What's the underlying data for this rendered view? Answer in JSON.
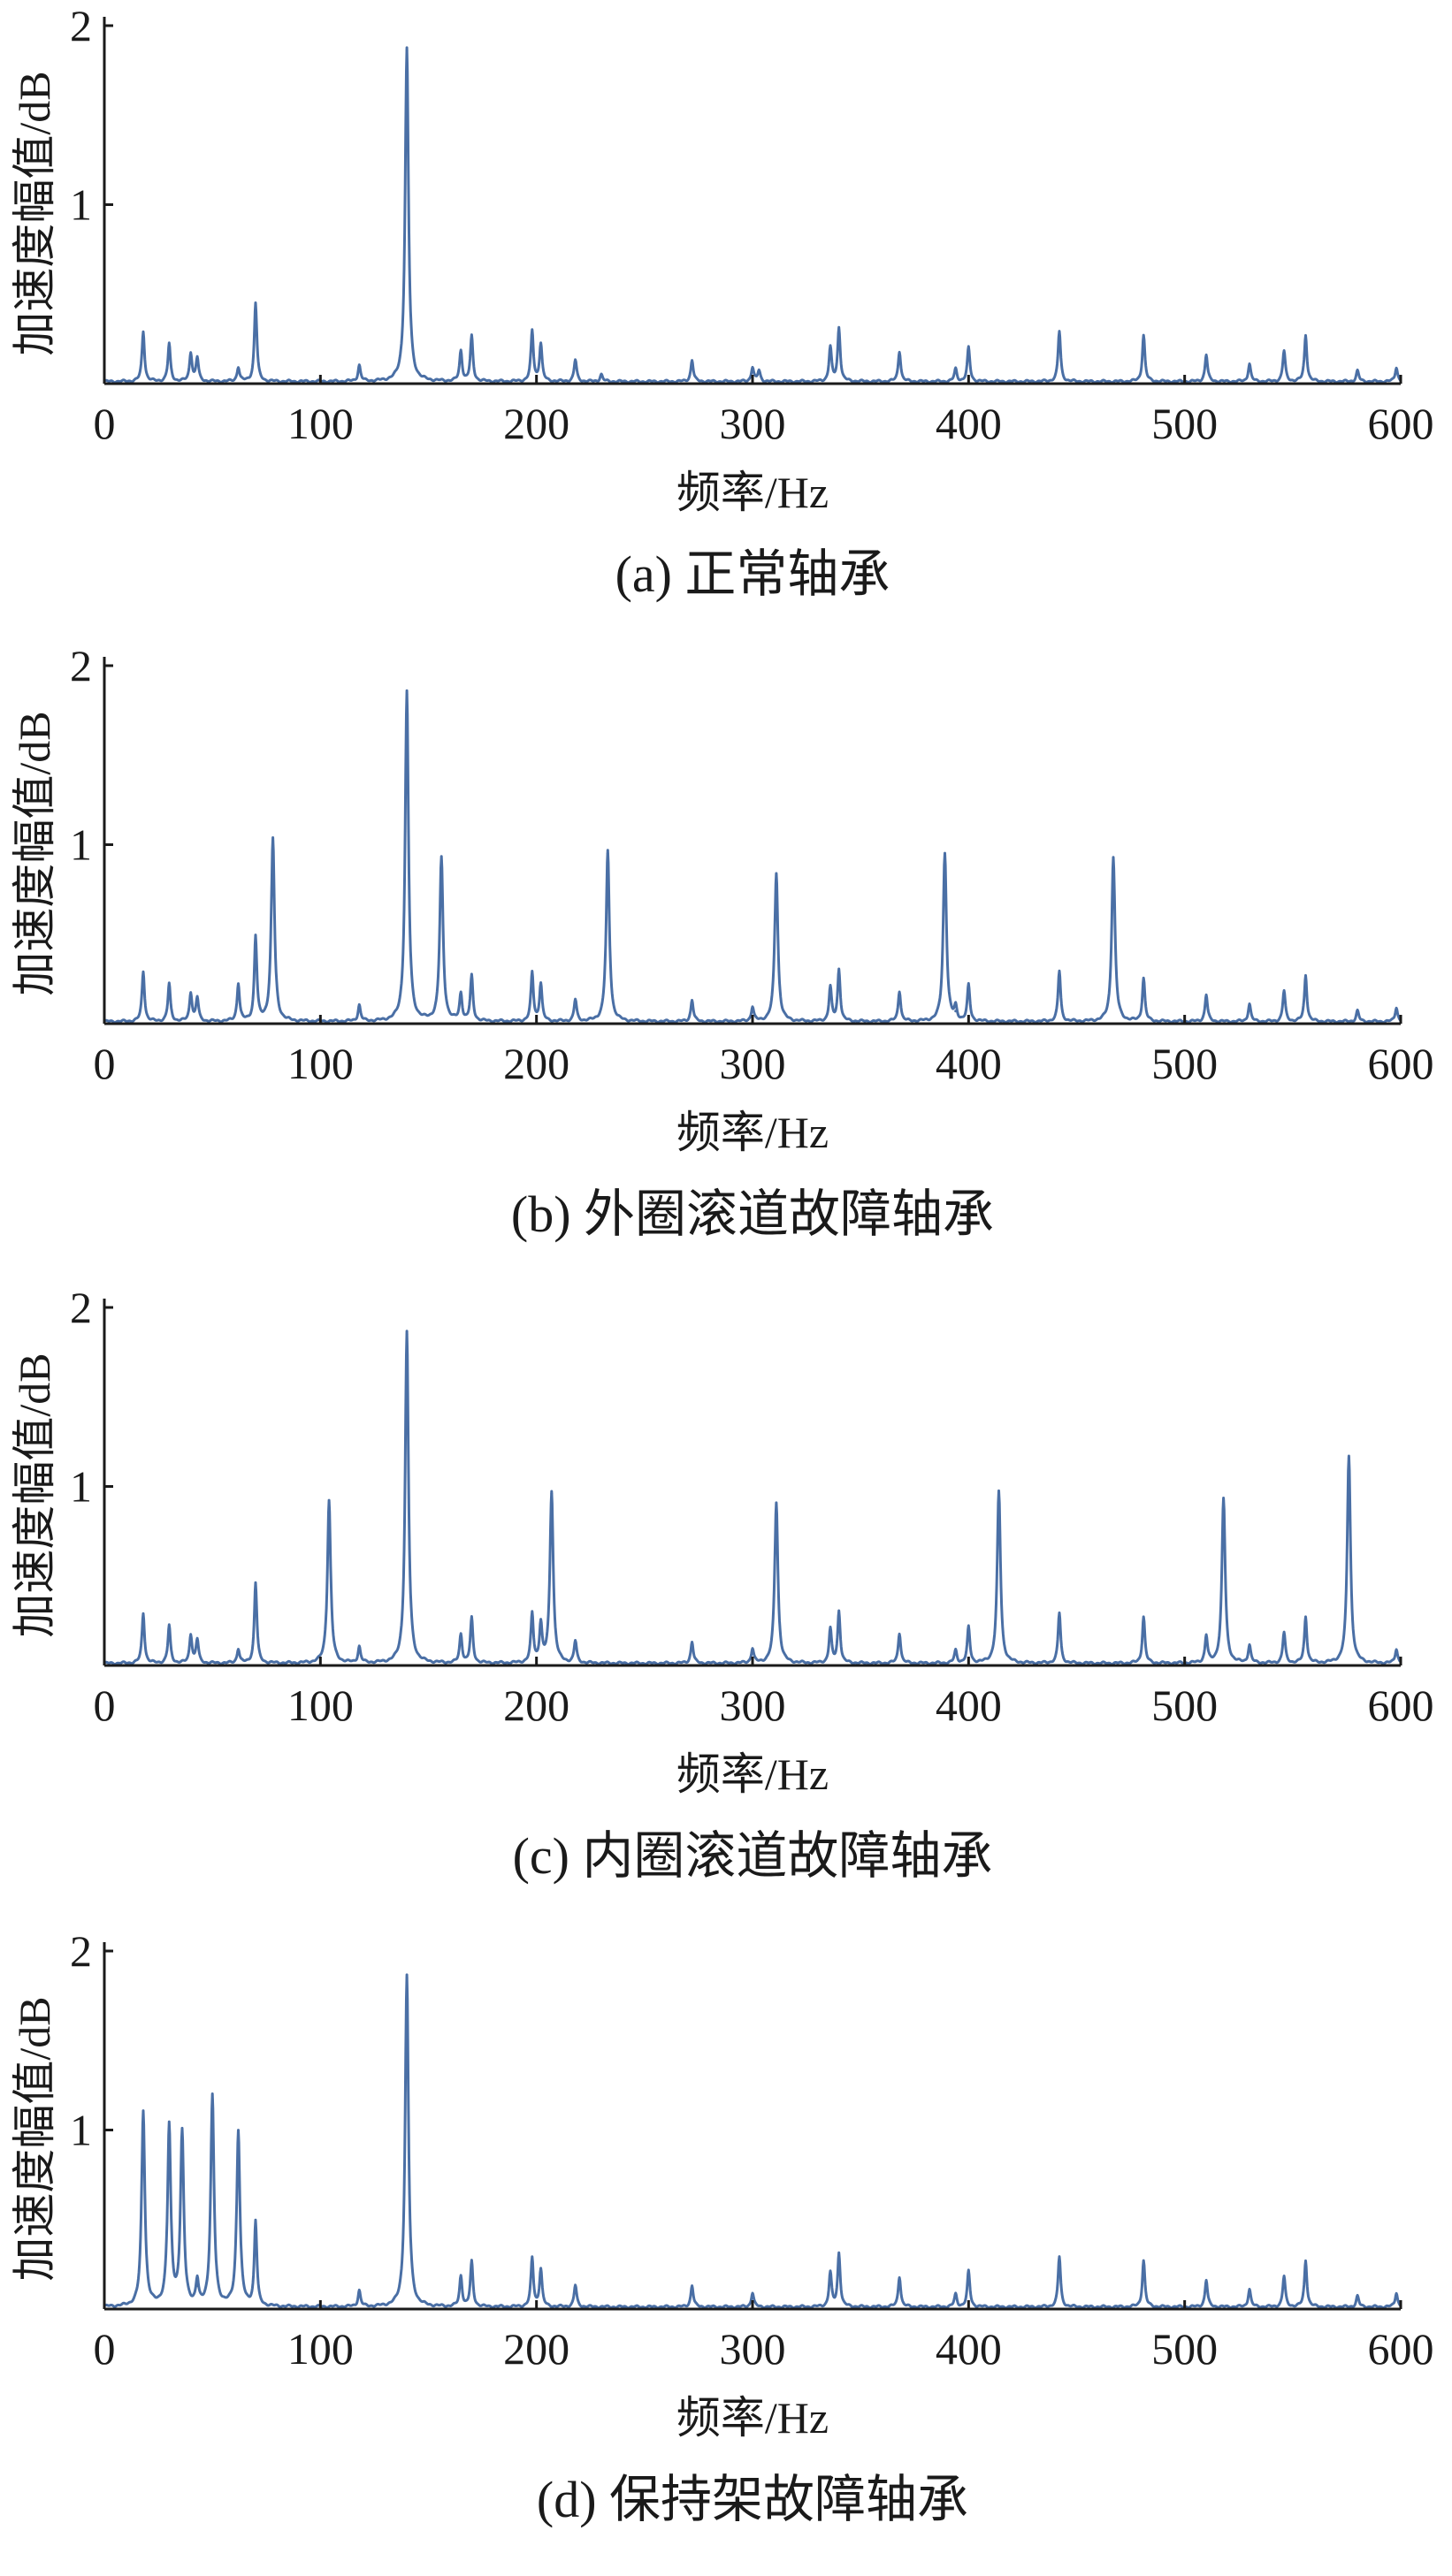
{
  "colors": {
    "series": "#4a6fa5",
    "axis": "#1a1a1a"
  },
  "chart_data": [
    {
      "type": "line",
      "caption": "(a) 正常轴承",
      "xlabel": "频率/Hz",
      "ylabel": "加速度幅值/dB",
      "xlim": [
        0,
        600
      ],
      "ylim": [
        0,
        2
      ],
      "xticks": [
        0,
        100,
        200,
        300,
        400,
        500,
        600
      ],
      "yticks": [
        1,
        2
      ],
      "grid": false,
      "peaks": [
        {
          "x": 18,
          "y": 0.28
        },
        {
          "x": 30,
          "y": 0.21
        },
        {
          "x": 40,
          "y": 0.16
        },
        {
          "x": 43,
          "y": 0.13
        },
        {
          "x": 62,
          "y": 0.08
        },
        {
          "x": 70,
          "y": 0.44
        },
        {
          "x": 118,
          "y": 0.09
        },
        {
          "x": 140,
          "y": 1.86
        },
        {
          "x": 165,
          "y": 0.17
        },
        {
          "x": 170,
          "y": 0.25
        },
        {
          "x": 198,
          "y": 0.28
        },
        {
          "x": 202,
          "y": 0.21
        },
        {
          "x": 218,
          "y": 0.12
        },
        {
          "x": 230,
          "y": 0.04
        },
        {
          "x": 272,
          "y": 0.12
        },
        {
          "x": 300,
          "y": 0.08
        },
        {
          "x": 303,
          "y": 0.06
        },
        {
          "x": 336,
          "y": 0.19
        },
        {
          "x": 340,
          "y": 0.3
        },
        {
          "x": 368,
          "y": 0.17
        },
        {
          "x": 394,
          "y": 0.07
        },
        {
          "x": 400,
          "y": 0.19
        },
        {
          "x": 442,
          "y": 0.28
        },
        {
          "x": 481,
          "y": 0.26
        },
        {
          "x": 510,
          "y": 0.15
        },
        {
          "x": 530,
          "y": 0.1
        },
        {
          "x": 546,
          "y": 0.17
        },
        {
          "x": 556,
          "y": 0.26
        },
        {
          "x": 580,
          "y": 0.06
        },
        {
          "x": 598,
          "y": 0.08
        }
      ]
    },
    {
      "type": "line",
      "caption": "(b) 外圈滚道故障轴承",
      "xlabel": "频率/Hz",
      "ylabel": "加速度幅值/dB",
      "xlim": [
        0,
        600
      ],
      "ylim": [
        0,
        2
      ],
      "xticks": [
        0,
        100,
        200,
        300,
        400,
        500,
        600
      ],
      "yticks": [
        1,
        2
      ],
      "grid": false,
      "peaks": [
        {
          "x": 18,
          "y": 0.28
        },
        {
          "x": 30,
          "y": 0.21
        },
        {
          "x": 40,
          "y": 0.16
        },
        {
          "x": 43,
          "y": 0.13
        },
        {
          "x": 62,
          "y": 0.21
        },
        {
          "x": 70,
          "y": 0.47
        },
        {
          "x": 78,
          "y": 1.02
        },
        {
          "x": 118,
          "y": 0.09
        },
        {
          "x": 140,
          "y": 1.84
        },
        {
          "x": 156,
          "y": 0.91
        },
        {
          "x": 165,
          "y": 0.15
        },
        {
          "x": 170,
          "y": 0.25
        },
        {
          "x": 198,
          "y": 0.27
        },
        {
          "x": 202,
          "y": 0.21
        },
        {
          "x": 218,
          "y": 0.12
        },
        {
          "x": 233,
          "y": 0.95
        },
        {
          "x": 272,
          "y": 0.12
        },
        {
          "x": 300,
          "y": 0.08
        },
        {
          "x": 311,
          "y": 0.83
        },
        {
          "x": 336,
          "y": 0.19
        },
        {
          "x": 340,
          "y": 0.29
        },
        {
          "x": 368,
          "y": 0.17
        },
        {
          "x": 389,
          "y": 0.94
        },
        {
          "x": 394,
          "y": 0.07
        },
        {
          "x": 400,
          "y": 0.2
        },
        {
          "x": 442,
          "y": 0.28
        },
        {
          "x": 467,
          "y": 0.92
        },
        {
          "x": 481,
          "y": 0.24
        },
        {
          "x": 510,
          "y": 0.15
        },
        {
          "x": 530,
          "y": 0.1
        },
        {
          "x": 546,
          "y": 0.17
        },
        {
          "x": 556,
          "y": 0.26
        },
        {
          "x": 580,
          "y": 0.06
        },
        {
          "x": 598,
          "y": 0.08
        }
      ]
    },
    {
      "type": "line",
      "caption": "(c) 内圈滚道故障轴承",
      "xlabel": "频率/Hz",
      "ylabel": "加速度幅值/dB",
      "xlim": [
        0,
        600
      ],
      "ylim": [
        0,
        2
      ],
      "xticks": [
        0,
        100,
        200,
        300,
        400,
        500,
        600
      ],
      "yticks": [
        1,
        2
      ],
      "grid": false,
      "peaks": [
        {
          "x": 18,
          "y": 0.28
        },
        {
          "x": 30,
          "y": 0.21
        },
        {
          "x": 40,
          "y": 0.16
        },
        {
          "x": 43,
          "y": 0.13
        },
        {
          "x": 62,
          "y": 0.08
        },
        {
          "x": 70,
          "y": 0.45
        },
        {
          "x": 104,
          "y": 0.91
        },
        {
          "x": 118,
          "y": 0.09
        },
        {
          "x": 140,
          "y": 1.85
        },
        {
          "x": 165,
          "y": 0.16
        },
        {
          "x": 170,
          "y": 0.25
        },
        {
          "x": 198,
          "y": 0.27
        },
        {
          "x": 202,
          "y": 0.21
        },
        {
          "x": 207,
          "y": 0.96
        },
        {
          "x": 218,
          "y": 0.12
        },
        {
          "x": 272,
          "y": 0.12
        },
        {
          "x": 300,
          "y": 0.08
        },
        {
          "x": 311,
          "y": 0.9
        },
        {
          "x": 336,
          "y": 0.19
        },
        {
          "x": 340,
          "y": 0.29
        },
        {
          "x": 368,
          "y": 0.17
        },
        {
          "x": 394,
          "y": 0.07
        },
        {
          "x": 400,
          "y": 0.2
        },
        {
          "x": 414,
          "y": 0.96
        },
        {
          "x": 442,
          "y": 0.28
        },
        {
          "x": 481,
          "y": 0.26
        },
        {
          "x": 510,
          "y": 0.15
        },
        {
          "x": 518,
          "y": 0.92
        },
        {
          "x": 530,
          "y": 0.1
        },
        {
          "x": 546,
          "y": 0.17
        },
        {
          "x": 556,
          "y": 0.26
        },
        {
          "x": 576,
          "y": 1.16
        },
        {
          "x": 598,
          "y": 0.08
        }
      ]
    },
    {
      "type": "line",
      "caption": "(d) 保持架故障轴承",
      "xlabel": "频率/Hz",
      "ylabel": "加速度幅值/dB",
      "xlim": [
        0,
        600
      ],
      "ylim": [
        0,
        2
      ],
      "xticks": [
        0,
        100,
        200,
        300,
        400,
        500,
        600
      ],
      "yticks": [
        1,
        2
      ],
      "grid": false,
      "peaks": [
        {
          "x": 18,
          "y": 1.09
        },
        {
          "x": 30,
          "y": 1.0
        },
        {
          "x": 36,
          "y": 0.96
        },
        {
          "x": 43,
          "y": 0.13
        },
        {
          "x": 50,
          "y": 1.17
        },
        {
          "x": 62,
          "y": 0.98
        },
        {
          "x": 70,
          "y": 0.47
        },
        {
          "x": 118,
          "y": 0.09
        },
        {
          "x": 140,
          "y": 1.85
        },
        {
          "x": 165,
          "y": 0.17
        },
        {
          "x": 170,
          "y": 0.25
        },
        {
          "x": 198,
          "y": 0.27
        },
        {
          "x": 202,
          "y": 0.21
        },
        {
          "x": 218,
          "y": 0.12
        },
        {
          "x": 272,
          "y": 0.12
        },
        {
          "x": 300,
          "y": 0.08
        },
        {
          "x": 336,
          "y": 0.19
        },
        {
          "x": 340,
          "y": 0.3
        },
        {
          "x": 368,
          "y": 0.17
        },
        {
          "x": 394,
          "y": 0.07
        },
        {
          "x": 400,
          "y": 0.2
        },
        {
          "x": 442,
          "y": 0.28
        },
        {
          "x": 481,
          "y": 0.26
        },
        {
          "x": 510,
          "y": 0.15
        },
        {
          "x": 530,
          "y": 0.1
        },
        {
          "x": 546,
          "y": 0.17
        },
        {
          "x": 556,
          "y": 0.26
        },
        {
          "x": 580,
          "y": 0.06
        },
        {
          "x": 598,
          "y": 0.08
        }
      ]
    }
  ]
}
